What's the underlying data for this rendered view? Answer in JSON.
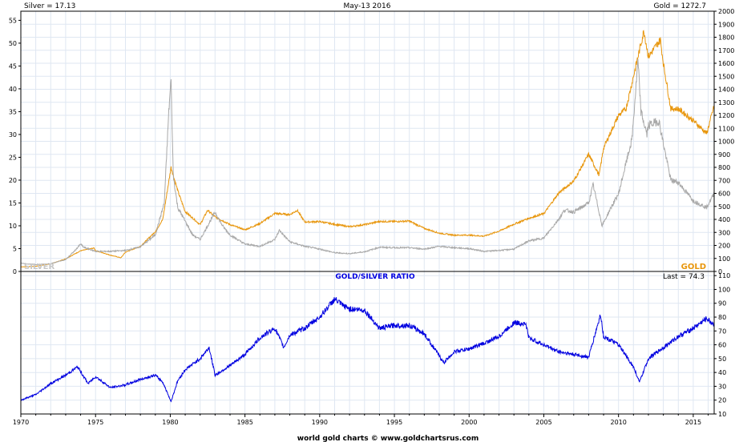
{
  "header": {
    "silver_last": "Silver = 17.13",
    "date": "May-13  2016",
    "gold_last": "Gold = 1272.7"
  },
  "footer": "world gold charts © www.goldchartsrus.com",
  "colors": {
    "gold": "#e8960c",
    "silver": "#a8a8a8",
    "ratio": "#0000e0",
    "grid": "#dfe7f2",
    "frame": "#000000"
  },
  "chart_data": [
    {
      "type": "line",
      "title": "",
      "left_axis": {
        "label": "Silver",
        "ylim": [
          0,
          57
        ],
        "ticks": [
          0,
          5,
          10,
          15,
          20,
          25,
          30,
          35,
          40,
          45,
          50,
          55
        ]
      },
      "right_axis": {
        "label": "Gold",
        "ylim": [
          0,
          2000
        ],
        "ticks": [
          0,
          100,
          200,
          300,
          400,
          500,
          600,
          700,
          800,
          900,
          1000,
          1100,
          1200,
          1300,
          1400,
          1500,
          1600,
          1700,
          1800,
          1900,
          2000
        ]
      },
      "x_ticks": [
        1970,
        1975,
        1980,
        1985,
        1990,
        1995,
        2000,
        2005,
        2010,
        2015
      ],
      "xlim": [
        1970,
        2016.4
      ],
      "grid": true,
      "series": [
        {
          "name": "SILVER",
          "axis": "left",
          "color": "#a8a8a8",
          "x": [
            1970,
            1971,
            1972,
            1973,
            1973.6,
            1974,
            1974.2,
            1975,
            1976,
            1977,
            1978,
            1979,
            1979.6,
            1979.9,
            1980.05,
            1980.2,
            1980.5,
            1981,
            1981.5,
            1982,
            1982.5,
            1983,
            1983.5,
            1984,
            1985,
            1986,
            1987,
            1987.3,
            1988,
            1989,
            1990,
            1991,
            1992,
            1993,
            1994,
            1995,
            1996,
            1997,
            1998,
            1999,
            2000,
            2001,
            2002,
            2003,
            2004,
            2005,
            2006,
            2006.4,
            2007,
            2008,
            2008.3,
            2008.9,
            2009.5,
            2010,
            2010.9,
            2011.3,
            2011.5,
            2011.9,
            2012,
            2012.7,
            2013,
            2013.5,
            2014,
            2015,
            2015.9,
            2016.4
          ],
          "y": [
            1.8,
            1.5,
            1.7,
            2.6,
            4.5,
            6,
            5.3,
            4.4,
            4.4,
            4.6,
            5.4,
            8,
            15,
            35,
            42,
            21,
            14,
            11,
            8,
            7,
            10,
            13,
            10,
            8,
            6,
            5.5,
            7,
            9,
            6.5,
            5.5,
            4.9,
            4.1,
            3.9,
            4.3,
            5.3,
            5.2,
            5.2,
            4.9,
            5.5,
            5.2,
            5,
            4.4,
            4.6,
            4.9,
            6.7,
            7.3,
            11.5,
            13.5,
            13,
            15,
            19,
            10,
            14,
            17,
            29,
            46,
            35,
            30,
            32,
            33,
            28,
            20,
            19.5,
            15.5,
            14,
            17.1
          ]
        },
        {
          "name": "GOLD",
          "axis": "right",
          "color": "#e8960c",
          "x": [
            1970,
            1971,
            1972,
            1973,
            1974,
            1974.9,
            1975,
            1976,
            1976.7,
            1977,
            1978,
            1979,
            1979.5,
            1980.05,
            1980.5,
            1981,
            1982,
            1982.5,
            1983,
            1984,
            1985,
            1986,
            1987,
            1988,
            1988.5,
            1989,
            1990,
            1991,
            1992,
            1993,
            1994,
            1995,
            1996,
            1997,
            1998,
            1999,
            2000,
            2001,
            2002,
            2003,
            2004,
            2005,
            2006,
            2007,
            2008,
            2008.7,
            2009,
            2010,
            2010.5,
            2011,
            2011.7,
            2012,
            2012.8,
            2013,
            2013.5,
            2014,
            2015,
            2015.9,
            2016.4
          ],
          "y": [
            35,
            40,
            58,
            97,
            159,
            180,
            160,
            125,
            105,
            148,
            193,
            306,
            400,
            800,
            620,
            460,
            360,
            470,
            420,
            360,
            320,
            368,
            446,
            437,
            470,
            380,
            383,
            362,
            344,
            360,
            384,
            384,
            387,
            331,
            294,
            279,
            279,
            271,
            310,
            363,
            409,
            444,
            603,
            695,
            900,
            740,
            950,
            1200,
            1250,
            1500,
            1850,
            1650,
            1780,
            1600,
            1250,
            1250,
            1160,
            1060,
            1272.7
          ]
        }
      ],
      "legend": [
        {
          "label": "SILVER",
          "placement": "bottom-left"
        },
        {
          "label": "GOLD",
          "placement": "bottom-right"
        }
      ]
    },
    {
      "type": "line",
      "title": "GOLD/SILVER RATIO",
      "last_label": "Last = 74.3",
      "right_axis": {
        "ylim": [
          10,
          113
        ],
        "ticks": [
          10,
          20,
          30,
          40,
          50,
          60,
          70,
          80,
          90,
          100,
          110
        ]
      },
      "x_ticks": [
        1970,
        1975,
        1980,
        1985,
        1990,
        1995,
        2000,
        2005,
        2010,
        2015
      ],
      "xlim": [
        1970,
        2016.4
      ],
      "grid": true,
      "series": [
        {
          "name": "GOLD/SILVER RATIO",
          "color": "#0000e0",
          "x": [
            1970,
            1971,
            1972,
            1973,
            1973.8,
            1974.5,
            1975,
            1976,
            1977,
            1978,
            1979,
            1979.5,
            1980.05,
            1980.5,
            1981,
            1982,
            1982.6,
            1983,
            1984,
            1985,
            1986,
            1987,
            1987.6,
            1988,
            1989,
            1990,
            1991,
            1991.6,
            1992,
            1993,
            1994,
            1995,
            1996,
            1997,
            1998,
            1998.3,
            1999,
            2000,
            2001,
            2002,
            2003,
            2003.8,
            2004,
            2005,
            2006,
            2007,
            2008,
            2008.8,
            2009,
            2010,
            2011,
            2011.4,
            2012,
            2013,
            2014,
            2015,
            2015.9,
            2016.4
          ],
          "y": [
            20,
            24,
            32,
            38,
            44,
            32,
            37,
            29,
            31,
            35,
            38,
            33,
            19,
            34,
            42,
            50,
            58,
            38,
            45,
            53,
            65,
            72,
            58,
            67,
            72,
            80,
            93,
            88,
            86,
            85,
            72,
            74,
            74,
            68,
            52,
            47,
            55,
            57,
            61,
            66,
            76,
            75,
            65,
            60,
            55,
            53,
            51,
            82,
            66,
            60,
            44,
            33,
            50,
            58,
            66,
            72,
            79,
            74.3
          ]
        }
      ]
    }
  ]
}
